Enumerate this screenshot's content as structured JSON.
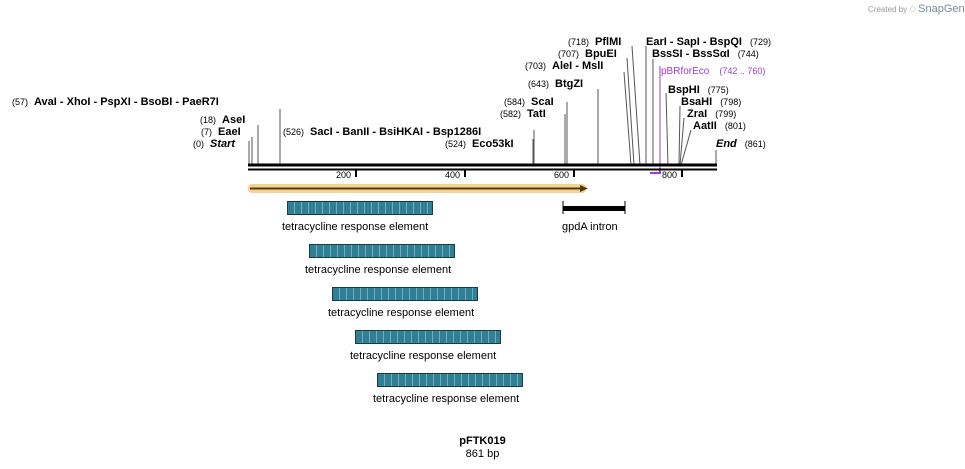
{
  "brand": {
    "prefix": "Created by",
    "name": "SnapGene"
  },
  "plasmid": {
    "name": "pFTK019",
    "length_label": "861 bp"
  },
  "ends": {
    "start": {
      "pos": "(0)",
      "label": "Start"
    },
    "end": {
      "pos": "(861)",
      "label": "End"
    }
  },
  "sites": {
    "avai_group": {
      "pos": "(57)",
      "label": "AvaI   - XhoI   - PspXI   - BsoBI   - PaeR7I"
    },
    "asei": {
      "pos": "(18)",
      "label": "AseI"
    },
    "eaei": {
      "pos": "(7)",
      "label": "EaeI"
    },
    "saci_group": {
      "pos": "(526)",
      "label": "SacI   - BanII   - BsiHKAI   - Bsp1286I"
    },
    "eco53ki": {
      "pos": "(524)",
      "label": "Eco53kI"
    },
    "tati": {
      "pos": "(582)",
      "label": "TatI"
    },
    "scai": {
      "pos": "(584)",
      "label": "ScaI"
    },
    "btgzi": {
      "pos": "(643)",
      "label": "BtgZI"
    },
    "alei": {
      "pos": "(703)",
      "label": "AleI   - MslI"
    },
    "bpuei": {
      "pos": "(707)",
      "label": "BpuEI"
    },
    "pflmi": {
      "pos": "(718)",
      "label": "PflMI"
    },
    "eari_group": {
      "label": "EarI   - SapI   - BspQI",
      "pos": "(729)"
    },
    "bsssi_group": {
      "label": "BssSI   - BssSαI",
      "pos": "(744)"
    },
    "bsphi": {
      "label": "BspHI",
      "pos": "(775)"
    },
    "bsahi": {
      "label": "BsaHI",
      "pos": "(798)"
    },
    "zrai": {
      "label": "ZraI",
      "pos": "(799)"
    },
    "aatii": {
      "label": "AatII",
      "pos": "(801)"
    }
  },
  "primer": {
    "label": "pBRforEco",
    "range": "(742 .. 760)",
    "color": "#a03bd0"
  },
  "ticks": [
    "200",
    "400",
    "600",
    "800"
  ],
  "features": {
    "tre_label": "tetracycline response element",
    "gpda_label": "gpdA intron",
    "tre_color": "#2f7f95",
    "orf_color": "#e8a33a"
  },
  "tre_copies": [
    "tetracycline response element",
    "tetracycline response element",
    "tetracycline response element",
    "tetracycline response element",
    "tetracycline response element"
  ]
}
